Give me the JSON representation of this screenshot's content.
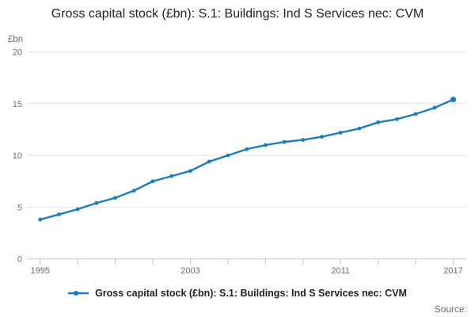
{
  "header": {
    "title": "Gross capital stock (£bn): S.1: Buildings: Ind S Services nec: CVM"
  },
  "footer": {
    "source_label": "Source:"
  },
  "chart_data": {
    "type": "line",
    "title": "Gross capital stock (£bn): S.1: Buildings: Ind S Services nec: CVM",
    "ylabel": "£bn",
    "xlabel": "",
    "x": [
      1995,
      1996,
      1997,
      1998,
      1999,
      2000,
      2001,
      2002,
      2003,
      2004,
      2005,
      2006,
      2007,
      2008,
      2009,
      2010,
      2011,
      2012,
      2013,
      2014,
      2015,
      2016,
      2017
    ],
    "series": [
      {
        "name": "Gross capital stock (£bn): S.1: Buildings: Ind S Services nec: CVM",
        "color": "#1d7cba",
        "values": [
          3.8,
          4.3,
          4.8,
          5.4,
          5.9,
          6.6,
          7.5,
          8.0,
          8.5,
          9.4,
          10.0,
          10.6,
          11.0,
          11.3,
          11.5,
          11.8,
          12.2,
          12.6,
          13.2,
          13.5,
          14.0,
          14.6,
          15.4
        ]
      }
    ],
    "ylim": [
      0,
      20
    ],
    "yticks": [
      0,
      5,
      10,
      15,
      20
    ],
    "xtick_step": 2,
    "xtick_labels": [
      1995,
      2003,
      2011,
      2017
    ],
    "grid": "horizontal-only",
    "legend_position": "bottom",
    "colors": {
      "grid": "#e3e3e3",
      "axis": "#b7c6d5",
      "tick_labels": "#6e6e6e",
      "title_text": "#222222",
      "legend_text": "#222222",
      "source_text": "#6e6e6e"
    }
  }
}
